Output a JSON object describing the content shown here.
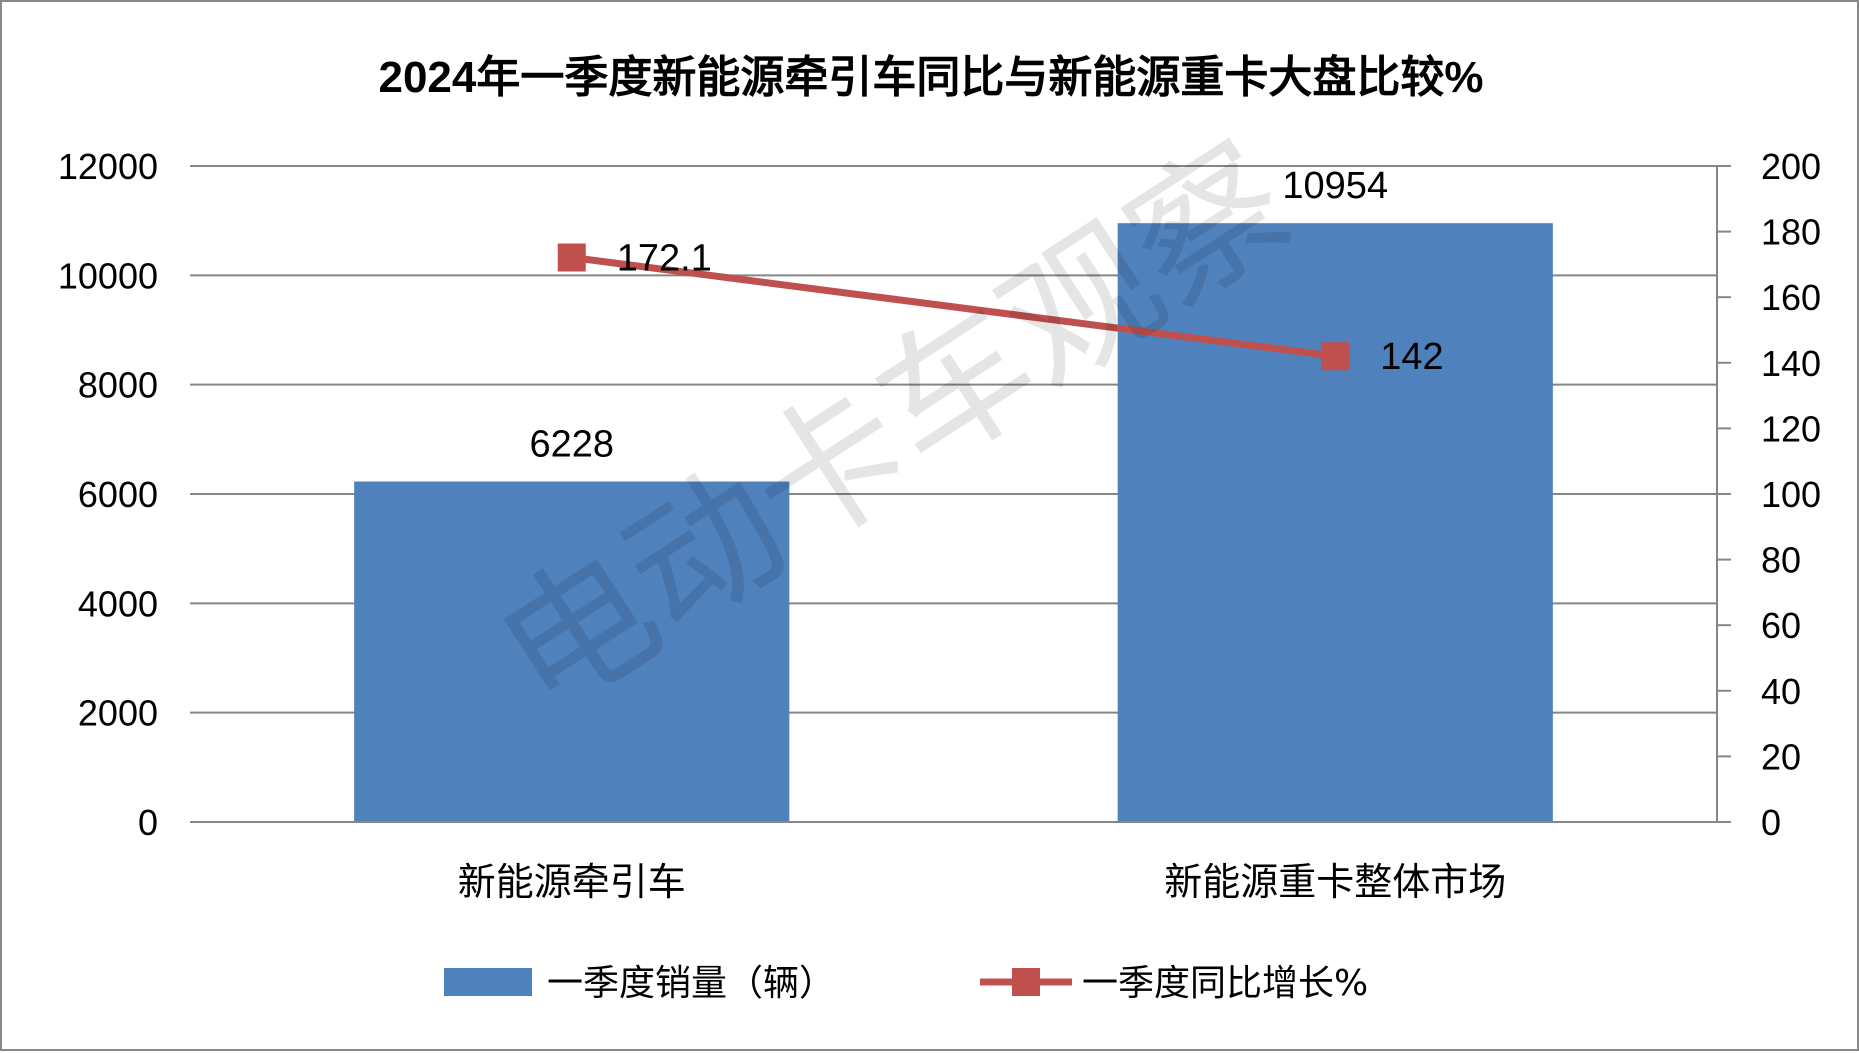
{
  "chart_data": {
    "type": "bar",
    "title": "2024年一季度新能源牵引车同比与新能源重卡大盘比较%",
    "categories": [
      "新能源牵引车",
      "新能源重卡整体市场"
    ],
    "series": [
      {
        "name": "一季度销量（辆）",
        "type": "bar",
        "axis": "left",
        "values": [
          6228,
          10954
        ],
        "color": "#4F81BD",
        "data_labels": [
          "6228",
          "10954"
        ]
      },
      {
        "name": "一季度同比增长%",
        "type": "line",
        "axis": "right",
        "values": [
          172.1,
          142
        ],
        "color": "#C0504D",
        "marker": "square",
        "data_labels": [
          "172.1",
          "142"
        ]
      }
    ],
    "y_left": {
      "min": 0,
      "max": 12000,
      "step": 2000,
      "ticks": [
        "0",
        "2000",
        "4000",
        "6000",
        "8000",
        "10000",
        "12000"
      ]
    },
    "y_right": {
      "min": 0,
      "max": 200,
      "step": 20,
      "ticks": [
        "0",
        "20",
        "40",
        "60",
        "80",
        "100",
        "120",
        "140",
        "160",
        "180",
        "200"
      ]
    },
    "grid": true,
    "legend_position": "bottom",
    "watermark": "电动卡车观察"
  }
}
